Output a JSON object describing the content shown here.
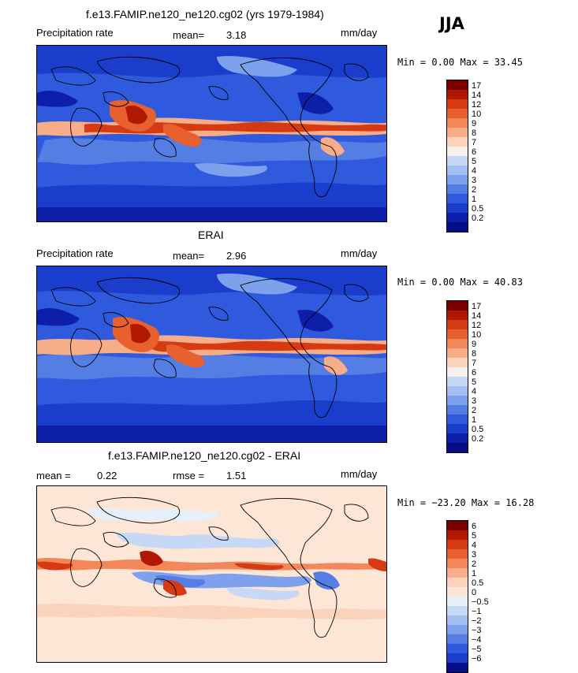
{
  "season": "JJA",
  "panels": [
    {
      "id": "model",
      "title": "f.e13.FAMIP.ne120_ne120.cg02 (yrs 1979-1984)",
      "left_label": "Precipitation rate",
      "stat1_label": "mean=",
      "stat1_value": "3.18",
      "stat2_label": "",
      "stat2_value": "",
      "units": "mm/day",
      "minmax": "Min =   0.00 Max =  33.45"
    },
    {
      "id": "obs",
      "title": "ERAI",
      "left_label": "Precipitation rate",
      "stat1_label": "mean=",
      "stat1_value": "2.96",
      "stat2_label": "",
      "stat2_value": "",
      "units": "mm/day",
      "minmax": "Min =   0.00 Max =  40.83"
    },
    {
      "id": "diff",
      "title": "f.e13.FAMIP.ne120_ne120.cg02 - ERAI",
      "left_label": "",
      "stat1_label": "mean =",
      "stat1_value": "0.22",
      "stat2_label": "rmse =",
      "stat2_value": "1.51",
      "units": "mm/day",
      "minmax": "Min = −23.20 Max =  16.28"
    }
  ],
  "colorbars": {
    "precip": {
      "labels": [
        "17",
        "14",
        "12",
        "10",
        "9",
        "8",
        "7",
        "6",
        "5",
        "4",
        "3",
        "2",
        "1",
        "0.5",
        "0.2"
      ],
      "colors": [
        "#7a0000",
        "#b01800",
        "#d53a12",
        "#e8602e",
        "#f2875a",
        "#f7ad88",
        "#fbd3ba",
        "#f6f0ec",
        "#c7d8f6",
        "#a6bff2",
        "#7da1ec",
        "#557ee4",
        "#2f5add",
        "#1a3dcc",
        "#0d1ea8",
        "#050f85"
      ]
    },
    "diff": {
      "labels": [
        "6",
        "5",
        "4",
        "3",
        "2",
        "1",
        "0.5",
        "0",
        "−0.5",
        "−1",
        "−2",
        "−3",
        "−4",
        "−5",
        "−6"
      ],
      "colors": [
        "#7a0000",
        "#b01800",
        "#d53a12",
        "#e8602e",
        "#f2875a",
        "#f7ad88",
        "#fbd3ba",
        "#fde6d6",
        "#e6f0fb",
        "#c7d8f6",
        "#a6bff2",
        "#7da1ec",
        "#557ee4",
        "#2f5add",
        "#1a3dcc",
        "#050f85"
      ]
    }
  },
  "chart_data": [
    {
      "type": "heatmap",
      "title": "f.e13.FAMIP.ne120_ne120.cg02 (yrs 1979-1984)",
      "field": "Precipitation rate",
      "units": "mm/day",
      "season": "JJA",
      "mean": 3.18,
      "min": 0.0,
      "max": 33.45,
      "contour_levels": [
        0.2,
        0.5,
        1,
        2,
        3,
        4,
        5,
        6,
        7,
        8,
        9,
        10,
        12,
        14,
        17
      ]
    },
    {
      "type": "heatmap",
      "title": "ERAI",
      "field": "Precipitation rate",
      "units": "mm/day",
      "season": "JJA",
      "mean": 2.96,
      "min": 0.0,
      "max": 40.83,
      "contour_levels": [
        0.2,
        0.5,
        1,
        2,
        3,
        4,
        5,
        6,
        7,
        8,
        9,
        10,
        12,
        14,
        17
      ]
    },
    {
      "type": "heatmap",
      "title": "f.e13.FAMIP.ne120_ne120.cg02 - ERAI",
      "units": "mm/day",
      "season": "JJA",
      "mean": 0.22,
      "rmse": 1.51,
      "min": -23.2,
      "max": 16.28,
      "contour_levels": [
        -6,
        -5,
        -4,
        -3,
        -2,
        -1,
        -0.5,
        0,
        0.5,
        1,
        2,
        3,
        4,
        5,
        6
      ]
    }
  ]
}
